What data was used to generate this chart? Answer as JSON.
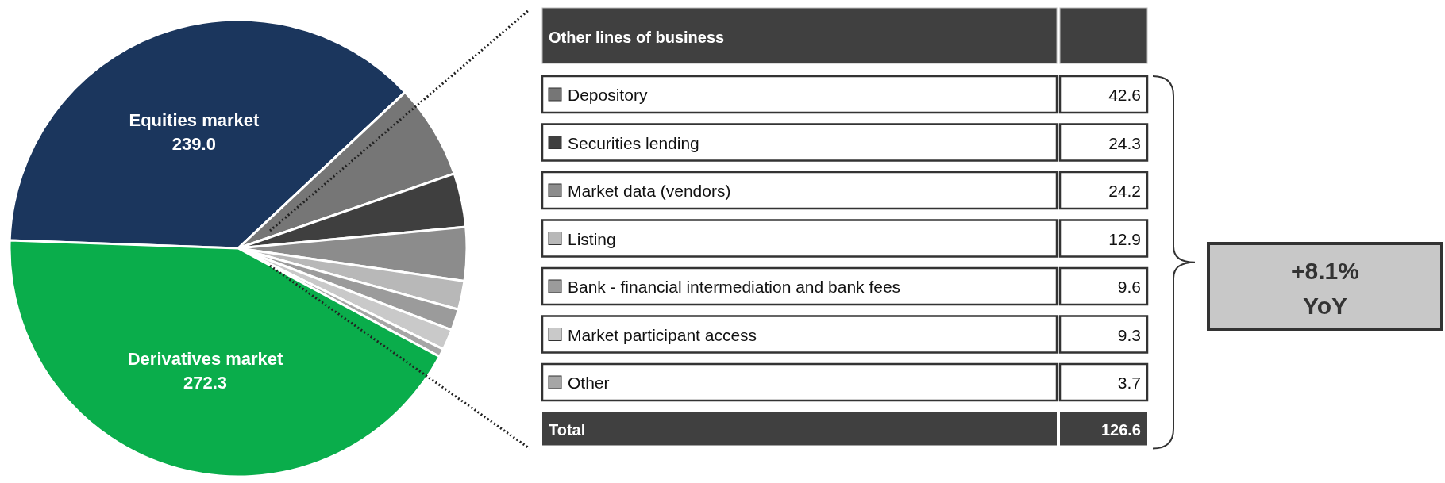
{
  "chart_data": {
    "type": "pie",
    "categories": [
      "Equities market",
      "Depository",
      "Securities lending",
      "Market data (vendors)",
      "Listing",
      "Bank - financial intermediation and bank fees",
      "Market participant access",
      "Other",
      "Derivatives market"
    ],
    "values": [
      239.0,
      42.6,
      24.3,
      24.2,
      12.9,
      9.6,
      9.3,
      3.7,
      272.3
    ],
    "value_labels": [
      "239.0",
      "42.6",
      "24.3",
      "24.2",
      "12.9",
      "9.6",
      "9.3",
      "3.7",
      "272.3"
    ],
    "colors": [
      "#1b365d",
      "#767676",
      "#3f3f3f",
      "#8c8c8c",
      "#b8b8b8",
      "#9b9b9b",
      "#c9c9c9",
      "#a6a6a6",
      "#0aad4b"
    ],
    "legend": "right",
    "annotations": [
      "Other lines of business",
      "Total",
      "126.6",
      "+8.1%",
      "YoY"
    ]
  }
}
